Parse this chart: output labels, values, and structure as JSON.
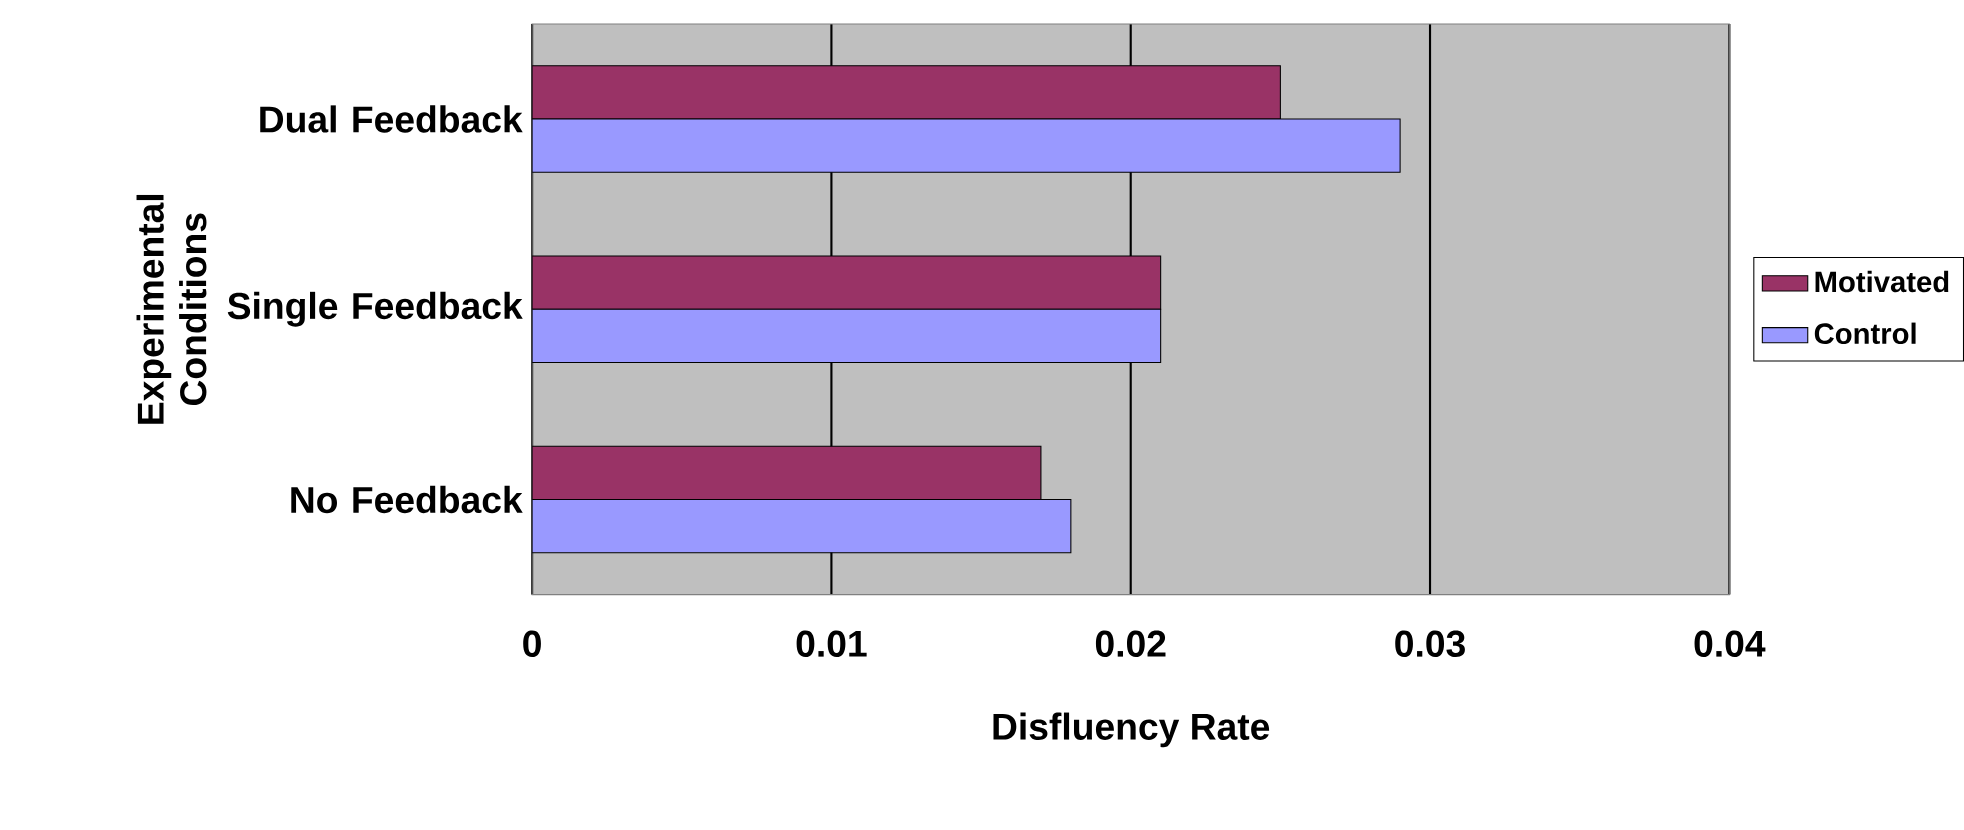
{
  "chart_data": {
    "type": "bar",
    "orientation": "horizontal",
    "xlabel": "Disfluency Rate",
    "ylabel": "Experimental Conditions",
    "categories": [
      "Dual Feedback",
      "Single Feedback",
      "No Feedback"
    ],
    "series": [
      {
        "name": "Motivated",
        "color": "#993366",
        "values": [
          0.025,
          0.021,
          0.017
        ]
      },
      {
        "name": "Control",
        "color": "#9999ff",
        "values": [
          0.029,
          0.021,
          0.018
        ]
      }
    ],
    "xlim": [
      0,
      0.04
    ],
    "xticks": [
      0,
      0.01,
      0.02,
      0.03,
      0.04
    ],
    "grid": "x",
    "legend": "right"
  }
}
